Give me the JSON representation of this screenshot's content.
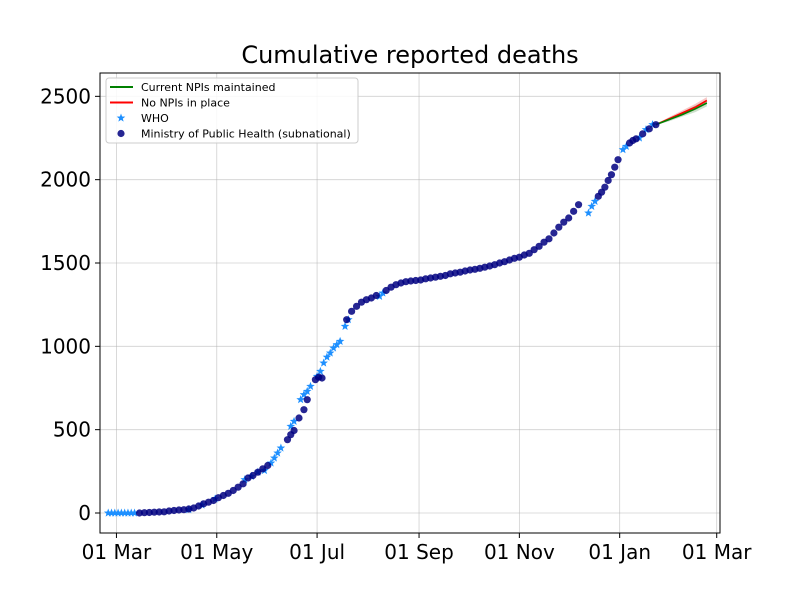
{
  "chart_data": {
    "type": "line",
    "title": "Cumulative reported deaths",
    "xlabel": "",
    "ylabel": "",
    "x_axis": {
      "type": "date",
      "range": [
        "2020-02-20",
        "2021-03-03"
      ],
      "ticks": [
        {
          "date": "2020-03-01",
          "label": "01 Mar"
        },
        {
          "date": "2020-05-01",
          "label": "01 May"
        },
        {
          "date": "2020-07-01",
          "label": "01 Jul"
        },
        {
          "date": "2020-09-01",
          "label": "01 Sep"
        },
        {
          "date": "2020-11-01",
          "label": "01 Nov"
        },
        {
          "date": "2021-01-01",
          "label": "01 Jan"
        },
        {
          "date": "2021-03-01",
          "label": "01 Mar"
        }
      ]
    },
    "y_axis": {
      "range": [
        -120,
        2640
      ],
      "ticks": [
        {
          "value": 0,
          "label": "0"
        },
        {
          "value": 500,
          "label": "500"
        },
        {
          "value": 1000,
          "label": "1000"
        },
        {
          "value": 1500,
          "label": "1500"
        },
        {
          "value": 2000,
          "label": "2000"
        },
        {
          "value": 2500,
          "label": "2500"
        }
      ]
    },
    "grid": true,
    "legend_position": "top-left",
    "legend": [
      {
        "label": "Current NPIs maintained",
        "marker": "line",
        "color": "#008000"
      },
      {
        "label": "No NPIs in place",
        "marker": "line",
        "color": "#ff0000"
      },
      {
        "label": "WHO",
        "marker": "star",
        "color": "#1e90ff"
      },
      {
        "label": "Ministry of Public Health (subnational)",
        "marker": "circle",
        "color": "#000080"
      }
    ],
    "series": [
      {
        "name": "WHO",
        "kind": "scatter",
        "marker": "star",
        "color": "#1e90ff",
        "points": [
          [
            "2020-02-25",
            0
          ],
          [
            "2020-02-27",
            0
          ],
          [
            "2020-02-29",
            0
          ],
          [
            "2020-03-02",
            0
          ],
          [
            "2020-03-04",
            0
          ],
          [
            "2020-03-06",
            0
          ],
          [
            "2020-03-08",
            0
          ],
          [
            "2020-03-10",
            0
          ],
          [
            "2020-03-12",
            0
          ],
          [
            "2020-04-14",
            20
          ],
          [
            "2020-04-22",
            48
          ],
          [
            "2020-04-30",
            85
          ],
          [
            "2020-05-18",
            200
          ],
          [
            "2020-05-22",
            220
          ],
          [
            "2020-05-26",
            245
          ],
          [
            "2020-05-30",
            255
          ],
          [
            "2020-06-03",
            300
          ],
          [
            "2020-06-05",
            330
          ],
          [
            "2020-06-07",
            360
          ],
          [
            "2020-06-09",
            390
          ],
          [
            "2020-06-15",
            520
          ],
          [
            "2020-06-17",
            550
          ],
          [
            "2020-06-21",
            680
          ],
          [
            "2020-06-23",
            710
          ],
          [
            "2020-06-25",
            730
          ],
          [
            "2020-06-27",
            760
          ],
          [
            "2020-07-01",
            820
          ],
          [
            "2020-07-03",
            850
          ],
          [
            "2020-07-05",
            900
          ],
          [
            "2020-07-07",
            935
          ],
          [
            "2020-07-09",
            960
          ],
          [
            "2020-07-11",
            990
          ],
          [
            "2020-07-13",
            1010
          ],
          [
            "2020-07-15",
            1030
          ],
          [
            "2020-07-18",
            1120
          ],
          [
            "2020-07-20",
            1160
          ],
          [
            "2020-08-08",
            1300
          ],
          [
            "2020-08-10",
            1320
          ],
          [
            "2020-12-13",
            1800
          ],
          [
            "2020-12-15",
            1840
          ],
          [
            "2020-12-17",
            1870
          ],
          [
            "2021-01-03",
            2180
          ],
          [
            "2021-01-05",
            2200
          ],
          [
            "2021-01-13",
            2250
          ],
          [
            "2021-01-17",
            2300
          ],
          [
            "2021-01-21",
            2330
          ]
        ]
      },
      {
        "name": "Ministry of Public Health (subnational)",
        "kind": "scatter",
        "marker": "circle",
        "color": "#000080",
        "points": [
          [
            "2020-03-15",
            0
          ],
          [
            "2020-03-18",
            2
          ],
          [
            "2020-03-21",
            3
          ],
          [
            "2020-03-24",
            5
          ],
          [
            "2020-03-27",
            6
          ],
          [
            "2020-03-30",
            7
          ],
          [
            "2020-04-02",
            12
          ],
          [
            "2020-04-05",
            15
          ],
          [
            "2020-04-08",
            18
          ],
          [
            "2020-04-11",
            20
          ],
          [
            "2020-04-14",
            24
          ],
          [
            "2020-04-17",
            30
          ],
          [
            "2020-04-20",
            42
          ],
          [
            "2020-04-23",
            55
          ],
          [
            "2020-04-26",
            65
          ],
          [
            "2020-04-29",
            75
          ],
          [
            "2020-05-02",
            92
          ],
          [
            "2020-05-05",
            105
          ],
          [
            "2020-05-08",
            118
          ],
          [
            "2020-05-11",
            135
          ],
          [
            "2020-05-14",
            155
          ],
          [
            "2020-05-17",
            175
          ],
          [
            "2020-05-20",
            210
          ],
          [
            "2020-05-23",
            225
          ],
          [
            "2020-05-26",
            245
          ],
          [
            "2020-05-29",
            265
          ],
          [
            "2020-06-01",
            285
          ],
          [
            "2020-06-13",
            440
          ],
          [
            "2020-06-15",
            470
          ],
          [
            "2020-06-17",
            495
          ],
          [
            "2020-06-20",
            570
          ],
          [
            "2020-06-23",
            620
          ],
          [
            "2020-06-25",
            680
          ],
          [
            "2020-06-30",
            800
          ],
          [
            "2020-07-02",
            815
          ],
          [
            "2020-07-04",
            810
          ],
          [
            "2020-07-19",
            1160
          ],
          [
            "2020-07-22",
            1210
          ],
          [
            "2020-07-25",
            1240
          ],
          [
            "2020-07-28",
            1265
          ],
          [
            "2020-07-31",
            1280
          ],
          [
            "2020-08-03",
            1290
          ],
          [
            "2020-08-06",
            1305
          ],
          [
            "2020-08-12",
            1335
          ],
          [
            "2020-08-15",
            1355
          ],
          [
            "2020-08-18",
            1370
          ],
          [
            "2020-08-21",
            1380
          ],
          [
            "2020-08-24",
            1388
          ],
          [
            "2020-08-27",
            1392
          ],
          [
            "2020-08-30",
            1395
          ],
          [
            "2020-09-02",
            1398
          ],
          [
            "2020-09-05",
            1405
          ],
          [
            "2020-09-08",
            1410
          ],
          [
            "2020-09-11",
            1415
          ],
          [
            "2020-09-14",
            1420
          ],
          [
            "2020-09-17",
            1425
          ],
          [
            "2020-09-20",
            1435
          ],
          [
            "2020-09-23",
            1440
          ],
          [
            "2020-09-26",
            1445
          ],
          [
            "2020-09-29",
            1452
          ],
          [
            "2020-10-02",
            1458
          ],
          [
            "2020-10-05",
            1462
          ],
          [
            "2020-10-08",
            1468
          ],
          [
            "2020-10-11",
            1475
          ],
          [
            "2020-10-14",
            1482
          ],
          [
            "2020-10-17",
            1490
          ],
          [
            "2020-10-20",
            1500
          ],
          [
            "2020-10-23",
            1508
          ],
          [
            "2020-10-26",
            1518
          ],
          [
            "2020-10-29",
            1528
          ],
          [
            "2020-11-01",
            1535
          ],
          [
            "2020-11-04",
            1548
          ],
          [
            "2020-11-07",
            1558
          ],
          [
            "2020-11-10",
            1580
          ],
          [
            "2020-11-13",
            1600
          ],
          [
            "2020-11-16",
            1625
          ],
          [
            "2020-11-19",
            1645
          ],
          [
            "2020-11-22",
            1680
          ],
          [
            "2020-11-25",
            1715
          ],
          [
            "2020-11-28",
            1745
          ],
          [
            "2020-12-01",
            1770
          ],
          [
            "2020-12-04",
            1810
          ],
          [
            "2020-12-07",
            1850
          ],
          [
            "2020-12-19",
            1900
          ],
          [
            "2020-12-21",
            1925
          ],
          [
            "2020-12-23",
            1955
          ],
          [
            "2020-12-25",
            1995
          ],
          [
            "2020-12-27",
            2030
          ],
          [
            "2020-12-29",
            2075
          ],
          [
            "2020-12-31",
            2120
          ],
          [
            "2021-01-07",
            2220
          ],
          [
            "2021-01-09",
            2235
          ],
          [
            "2021-01-11",
            2245
          ],
          [
            "2021-01-15",
            2275
          ],
          [
            "2021-01-19",
            2305
          ],
          [
            "2021-01-23",
            2330
          ]
        ]
      },
      {
        "name": "No NPIs in place",
        "kind": "line",
        "color": "#ff0000",
        "band_color": "#f08080",
        "points": [
          [
            "2021-01-23",
            2330
          ],
          [
            "2021-01-31",
            2365
          ],
          [
            "2021-02-08",
            2400
          ],
          [
            "2021-02-16",
            2435
          ],
          [
            "2021-02-23",
            2475
          ]
        ],
        "upper": [
          2332,
          2375,
          2415,
          2455,
          2495
        ],
        "lower": [
          2328,
          2355,
          2385,
          2418,
          2455
        ]
      },
      {
        "name": "Current NPIs maintained",
        "kind": "line",
        "color": "#008000",
        "band_color": "#8fbc8f",
        "points": [
          [
            "2021-01-23",
            2330
          ],
          [
            "2021-01-31",
            2360
          ],
          [
            "2021-02-08",
            2390
          ],
          [
            "2021-02-16",
            2425
          ],
          [
            "2021-02-23",
            2460
          ]
        ],
        "upper": [
          2332,
          2370,
          2405,
          2445,
          2480
        ],
        "lower": [
          2328,
          2350,
          2378,
          2405,
          2440
        ]
      }
    ]
  }
}
